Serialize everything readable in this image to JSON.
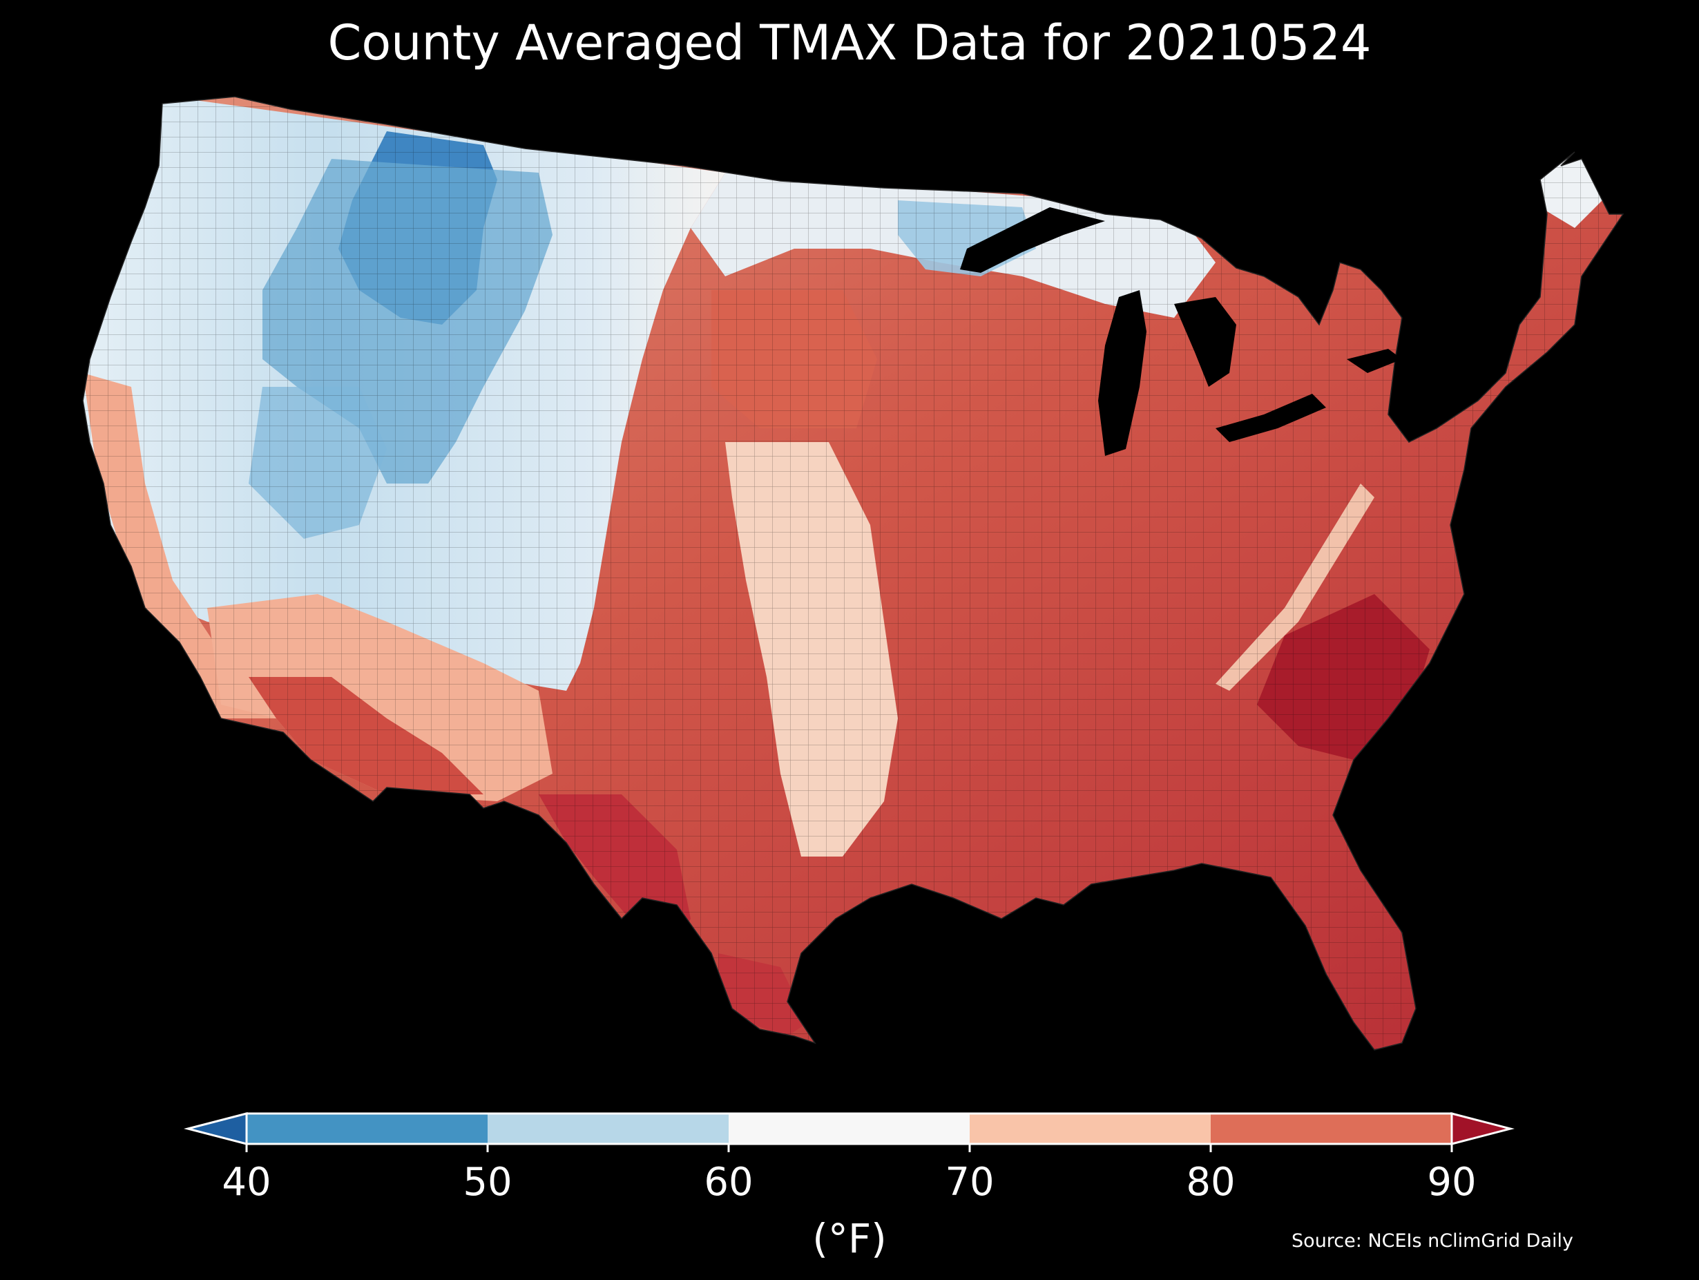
{
  "title": "County Averaged TMAX Data for 20210524",
  "colorbar": {
    "units": "(°F)",
    "ticks": [
      "40",
      "50",
      "60",
      "70",
      "80",
      "90"
    ],
    "bins": [
      {
        "from": 40,
        "to": 50,
        "color": "#4393c3"
      },
      {
        "from": 50,
        "to": 60,
        "color": "#b7d7e8"
      },
      {
        "from": 60,
        "to": 70,
        "color": "#f7f7f7"
      },
      {
        "from": 70,
        "to": 80,
        "color": "#f9c4a9"
      },
      {
        "from": 80,
        "to": 90,
        "color": "#de6e58"
      }
    ],
    "under_color": "#1e5fa1",
    "over_color": "#a11228"
  },
  "source": "Source: NCEIs nClimGrid Daily"
}
